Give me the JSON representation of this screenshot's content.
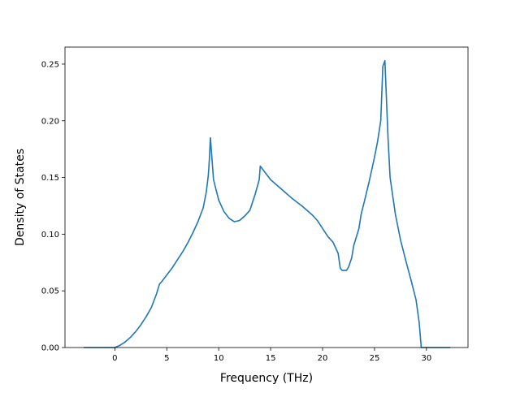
{
  "chart_data": {
    "type": "line",
    "title": "",
    "xlabel": "Frequency (THz)",
    "ylabel": "Density of States",
    "xlim": [
      -4.8,
      34.0
    ],
    "ylim": [
      0.0,
      0.265
    ],
    "xticks": [
      0,
      5,
      10,
      15,
      20,
      25,
      30
    ],
    "yticks": [
      0.0,
      0.05,
      0.1,
      0.15,
      0.2,
      0.25
    ],
    "xtick_labels": [
      "0",
      "5",
      "10",
      "15",
      "20",
      "25",
      "30"
    ],
    "ytick_labels": [
      "0.00",
      "0.05",
      "0.10",
      "0.15",
      "0.20",
      "0.25"
    ],
    "grid": false,
    "legend": "none",
    "series": [
      {
        "color": "#1f77b4",
        "x": [
          -3.0,
          0.0,
          0.5,
          1.0,
          1.5,
          2.0,
          2.5,
          3.0,
          3.5,
          4.0,
          4.3,
          4.5,
          5.0,
          5.5,
          6.0,
          6.5,
          7.0,
          7.5,
          8.0,
          8.5,
          8.8,
          9.0,
          9.1,
          9.2,
          9.5,
          10.0,
          10.5,
          11.0,
          11.5,
          12.0,
          12.5,
          13.0,
          13.5,
          13.9,
          14.0,
          14.5,
          15.0,
          16.0,
          17.0,
          18.0,
          19.0,
          19.5,
          20.0,
          20.5,
          21.0,
          21.5,
          21.7,
          21.9,
          22.3,
          22.5,
          22.8,
          23.0,
          23.5,
          23.7,
          24.0,
          24.5,
          25.0,
          25.3,
          25.6,
          25.8,
          26.0,
          26.3,
          26.5,
          27.0,
          27.5,
          28.0,
          28.5,
          29.0,
          29.3,
          29.5,
          30.0,
          32.3
        ],
        "y": [
          0.0,
          0.0,
          0.002,
          0.005,
          0.009,
          0.014,
          0.02,
          0.027,
          0.035,
          0.047,
          0.056,
          0.058,
          0.064,
          0.07,
          0.077,
          0.084,
          0.092,
          0.101,
          0.111,
          0.123,
          0.137,
          0.152,
          0.166,
          0.185,
          0.148,
          0.13,
          0.12,
          0.114,
          0.111,
          0.112,
          0.116,
          0.121,
          0.135,
          0.148,
          0.16,
          0.154,
          0.148,
          0.14,
          0.132,
          0.125,
          0.117,
          0.112,
          0.105,
          0.098,
          0.093,
          0.083,
          0.07,
          0.068,
          0.068,
          0.071,
          0.079,
          0.09,
          0.105,
          0.117,
          0.128,
          0.147,
          0.168,
          0.182,
          0.2,
          0.248,
          0.253,
          0.185,
          0.15,
          0.118,
          0.095,
          0.077,
          0.06,
          0.042,
          0.022,
          0.0,
          0.0,
          0.0
        ]
      }
    ]
  }
}
